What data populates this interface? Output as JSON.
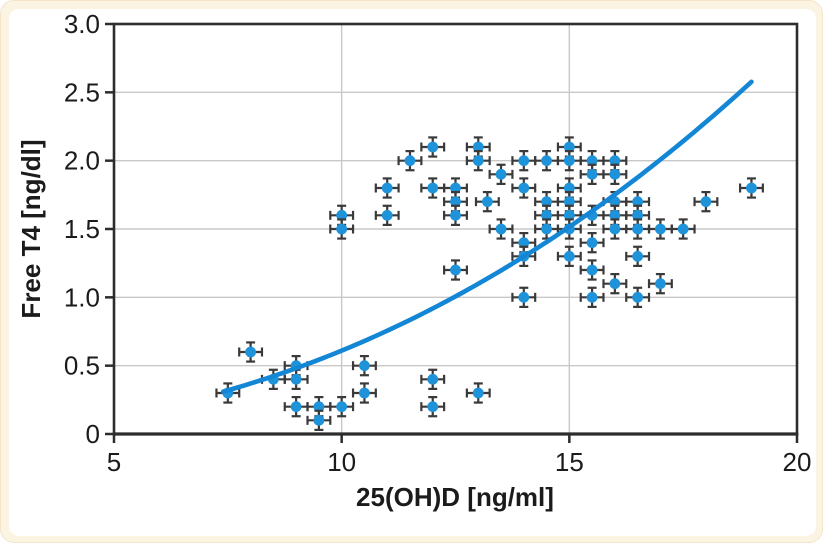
{
  "figure": {
    "background_color": "#fcf4e2",
    "panel_color": "#ffffff"
  },
  "chart_data": {
    "type": "scatter",
    "title": "",
    "xlabel": "25(OH)D [ng/ml]",
    "ylabel": "Free T4 [ng/dl]",
    "xlim": [
      5,
      20
    ],
    "ylim": [
      0,
      3.0
    ],
    "x_ticks": [
      5,
      10,
      15,
      20
    ],
    "x_tick_labels": [
      "5",
      "10",
      "15",
      "20"
    ],
    "y_ticks": [
      0,
      0.5,
      1.0,
      1.5,
      2.0,
      2.5,
      3.0
    ],
    "y_tick_labels": [
      "0",
      "0.5",
      "1.0",
      "1.5",
      "2.0",
      "2.5",
      "3.0"
    ],
    "grid": true,
    "legend": "none",
    "x_error": 0.25,
    "y_error": 0.07,
    "points": [
      [
        7.5,
        0.3
      ],
      [
        8,
        0.6
      ],
      [
        8.5,
        0.4
      ],
      [
        9,
        0.5
      ],
      [
        9,
        0.4
      ],
      [
        9,
        0.2
      ],
      [
        9.5,
        0.2
      ],
      [
        9.5,
        0.1
      ],
      [
        10,
        1.6
      ],
      [
        10,
        1.5
      ],
      [
        10,
        0.2
      ],
      [
        10.5,
        0.5
      ],
      [
        10.5,
        0.3
      ],
      [
        11,
        1.8
      ],
      [
        11,
        1.6
      ],
      [
        11.5,
        2.0
      ],
      [
        12,
        2.1
      ],
      [
        12,
        1.8
      ],
      [
        12,
        0.4
      ],
      [
        12,
        0.2
      ],
      [
        12.5,
        1.8
      ],
      [
        12.5,
        1.7
      ],
      [
        12.5,
        1.6
      ],
      [
        12.5,
        1.2
      ],
      [
        13,
        2.1
      ],
      [
        13,
        2.0
      ],
      [
        13,
        0.3
      ],
      [
        13.2,
        1.7
      ],
      [
        13.5,
        1.9
      ],
      [
        13.5,
        1.5
      ],
      [
        14,
        2.0
      ],
      [
        14,
        1.8
      ],
      [
        14,
        1.4
      ],
      [
        14,
        1.3
      ],
      [
        14,
        1.0
      ],
      [
        14.5,
        2.0
      ],
      [
        14.5,
        1.7
      ],
      [
        14.5,
        1.6
      ],
      [
        14.5,
        1.5
      ],
      [
        15,
        2.1
      ],
      [
        15,
        2.0
      ],
      [
        15,
        1.8
      ],
      [
        15,
        1.7
      ],
      [
        15,
        1.6
      ],
      [
        15,
        1.5
      ],
      [
        15,
        1.3
      ],
      [
        15.5,
        2.0
      ],
      [
        15.5,
        1.9
      ],
      [
        15.5,
        1.6
      ],
      [
        15.5,
        1.4
      ],
      [
        15.5,
        1.2
      ],
      [
        15.5,
        1.0
      ],
      [
        16,
        2.0
      ],
      [
        16,
        1.9
      ],
      [
        16,
        1.7
      ],
      [
        16,
        1.6
      ],
      [
        16,
        1.5
      ],
      [
        16,
        1.1
      ],
      [
        16.5,
        1.7
      ],
      [
        16.5,
        1.6
      ],
      [
        16.5,
        1.5
      ],
      [
        16.5,
        1.3
      ],
      [
        16.5,
        1.0
      ],
      [
        17,
        1.5
      ],
      [
        17,
        1.1
      ],
      [
        17.5,
        1.5
      ],
      [
        18,
        1.7
      ],
      [
        19,
        1.8
      ]
    ],
    "trend_curve": {
      "model": "power",
      "a": 0.00347,
      "b": 2.245,
      "x_start": 7.4,
      "x_end": 19.0
    },
    "colors": {
      "marker": "#1f93d9",
      "curve": "#1387d6",
      "error_bar": "#3a3a3a",
      "grid": "#c8c8c8",
      "axis": "#2d2d2d",
      "text": "#1b1b1b"
    }
  }
}
